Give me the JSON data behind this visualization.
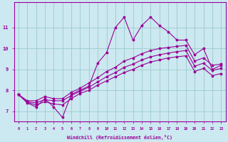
{
  "xlabel": "Windchill (Refroidissement éolien,°C)",
  "ylabel": "",
  "bg_color": "#cce8f0",
  "line_color": "#990099",
  "grid_color": "#99cccc",
  "x_values": [
    0,
    1,
    2,
    3,
    4,
    5,
    6,
    7,
    8,
    9,
    10,
    11,
    12,
    13,
    14,
    15,
    16,
    17,
    18,
    19,
    20,
    21,
    22,
    23
  ],
  "line1": [
    7.8,
    7.4,
    7.2,
    7.6,
    7.2,
    6.7,
    7.8,
    8.0,
    8.2,
    9.3,
    9.8,
    11.0,
    11.5,
    10.4,
    11.1,
    11.5,
    11.1,
    10.8,
    10.4,
    10.4,
    9.7,
    10.0,
    9.0,
    9.2
  ],
  "line2": [
    7.8,
    7.5,
    7.5,
    7.7,
    7.6,
    7.6,
    7.9,
    8.1,
    8.35,
    8.6,
    8.9,
    9.1,
    9.4,
    9.55,
    9.75,
    9.9,
    10.0,
    10.05,
    10.1,
    10.15,
    9.4,
    9.55,
    9.2,
    9.25
  ],
  "line3": [
    7.8,
    7.45,
    7.4,
    7.55,
    7.5,
    7.5,
    7.75,
    7.95,
    8.15,
    8.4,
    8.65,
    8.85,
    9.1,
    9.25,
    9.45,
    9.6,
    9.7,
    9.78,
    9.85,
    9.9,
    9.15,
    9.3,
    8.95,
    9.05
  ],
  "line4": [
    7.8,
    7.42,
    7.3,
    7.45,
    7.35,
    7.3,
    7.6,
    7.85,
    8.0,
    8.25,
    8.45,
    8.65,
    8.85,
    9.0,
    9.2,
    9.35,
    9.45,
    9.55,
    9.6,
    9.65,
    8.9,
    9.05,
    8.7,
    8.8
  ],
  "ylim": [
    6.5,
    12.2
  ],
  "yticks": [
    7,
    8,
    9,
    10,
    11
  ],
  "xlim": [
    -0.5,
    23.5
  ]
}
